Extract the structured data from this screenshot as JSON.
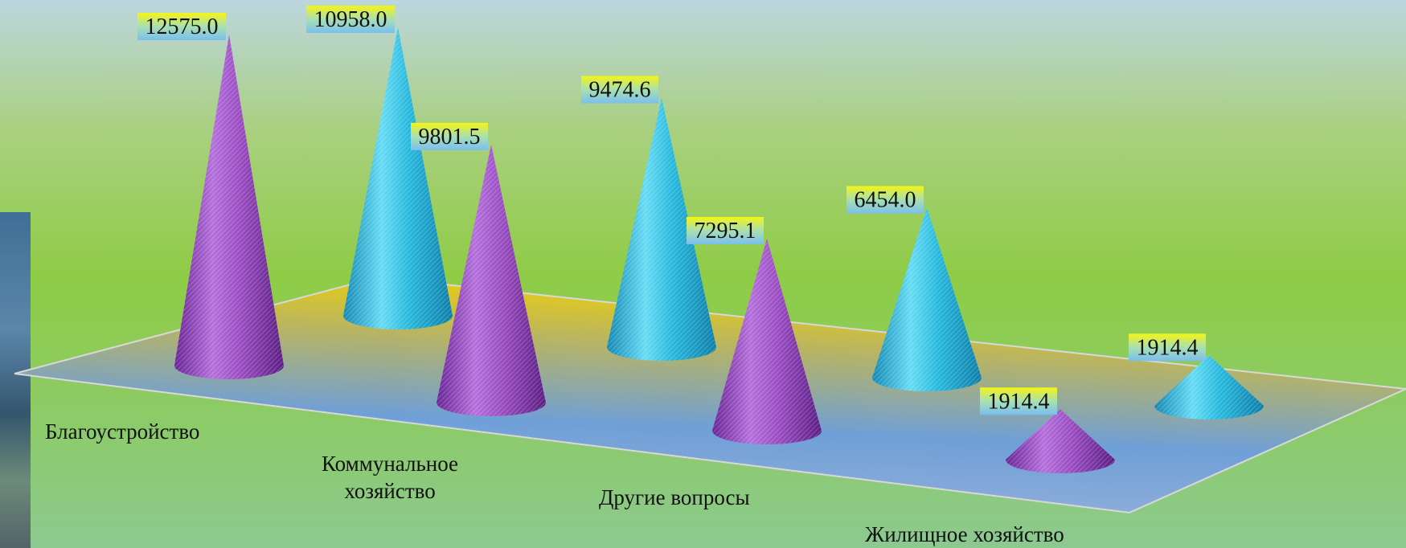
{
  "chart_data": {
    "type": "bar",
    "style": "3d-cone",
    "categories": [
      "Благоустройство",
      "Коммунальное хозяйство",
      "Другие вопросы",
      "Жилищное хозяйство"
    ],
    "category_display": [
      "Благоустройство",
      "Коммунальное\nхозяйство",
      "Другие вопросы",
      "Жилищное хозяйство"
    ],
    "series": [
      {
        "color": "#9b4dc2",
        "values": [
          12575.0,
          9801.5,
          7295.1,
          1914.4
        ]
      },
      {
        "color": "#27b9dd",
        "values": [
          10958.0,
          9474.6,
          6454.0,
          1914.4
        ]
      }
    ],
    "value_labels": [
      [
        "12575.0",
        "9801.5",
        "7295.1",
        "1914.4"
      ],
      [
        "10958.0",
        "9474.6",
        "6454.0",
        "1914.4"
      ]
    ],
    "grid": false,
    "legend": "none"
  }
}
